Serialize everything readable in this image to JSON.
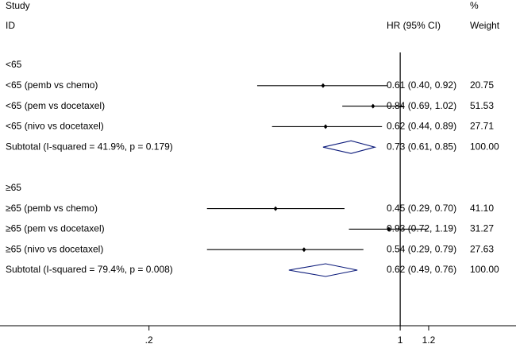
{
  "header": {
    "study_label": "Study",
    "id_label": "ID",
    "hr_label": "HR (95% CI)",
    "pct_label": "%",
    "weight_label": "Weight"
  },
  "chart_data": {
    "type": "forest",
    "title": "",
    "xlabel": "",
    "x_scale": "log",
    "xlim": [
      0.077,
      2.1
    ],
    "xticks": [
      0.2,
      1,
      1.2
    ],
    "xtick_labels": [
      ".2",
      "1",
      "1.2"
    ],
    "reference_line": 1,
    "rows": [
      {
        "kind": "group",
        "label": "<65"
      },
      {
        "kind": "study",
        "label": "<65 (pemb vs chemo)",
        "hr": 0.61,
        "lo": 0.4,
        "hi": 0.92,
        "ci_text": "0.61 (0.40, 0.92)",
        "weight": "20.75"
      },
      {
        "kind": "study",
        "label": "<65 (pem vs docetaxel)",
        "hr": 0.84,
        "lo": 0.69,
        "hi": 1.02,
        "ci_text": "0.84 (0.69, 1.02)",
        "weight": "51.53"
      },
      {
        "kind": "study",
        "label": "<65 (nivo vs docetaxel)",
        "hr": 0.62,
        "lo": 0.44,
        "hi": 0.89,
        "ci_text": "0.62 (0.44, 0.89)",
        "weight": "27.71"
      },
      {
        "kind": "subtotal",
        "label": "Subtotal  (I-squared = 41.9%, p = 0.179)",
        "hr": 0.73,
        "lo": 0.61,
        "hi": 0.85,
        "ci_text": "0.73 (0.61, 0.85)",
        "weight": "100.00"
      },
      {
        "kind": "blank"
      },
      {
        "kind": "group",
        "label": "≥65"
      },
      {
        "kind": "study",
        "label": "≥65 (pemb vs chemo)",
        "hr": 0.45,
        "lo": 0.29,
        "hi": 0.7,
        "ci_text": "0.45 (0.29, 0.70)",
        "weight": "41.10"
      },
      {
        "kind": "study",
        "label": "≥65 (pem vs docetaxel)",
        "hr": 0.93,
        "lo": 0.72,
        "hi": 1.19,
        "ci_text": "0.93 (0.72, 1.19)",
        "weight": "31.27"
      },
      {
        "kind": "study",
        "label": "≥65 (nivo vs docetaxel)",
        "hr": 0.54,
        "lo": 0.29,
        "hi": 0.79,
        "ci_text": "0.54 (0.29, 0.79)",
        "weight": "27.63"
      },
      {
        "kind": "subtotal",
        "label": "Subtotal  (I-squared = 79.4%, p = 0.008)",
        "hr": 0.62,
        "lo": 0.49,
        "hi": 0.76,
        "ci_text": "0.62 (0.49, 0.76)",
        "weight": "100.00"
      }
    ]
  }
}
